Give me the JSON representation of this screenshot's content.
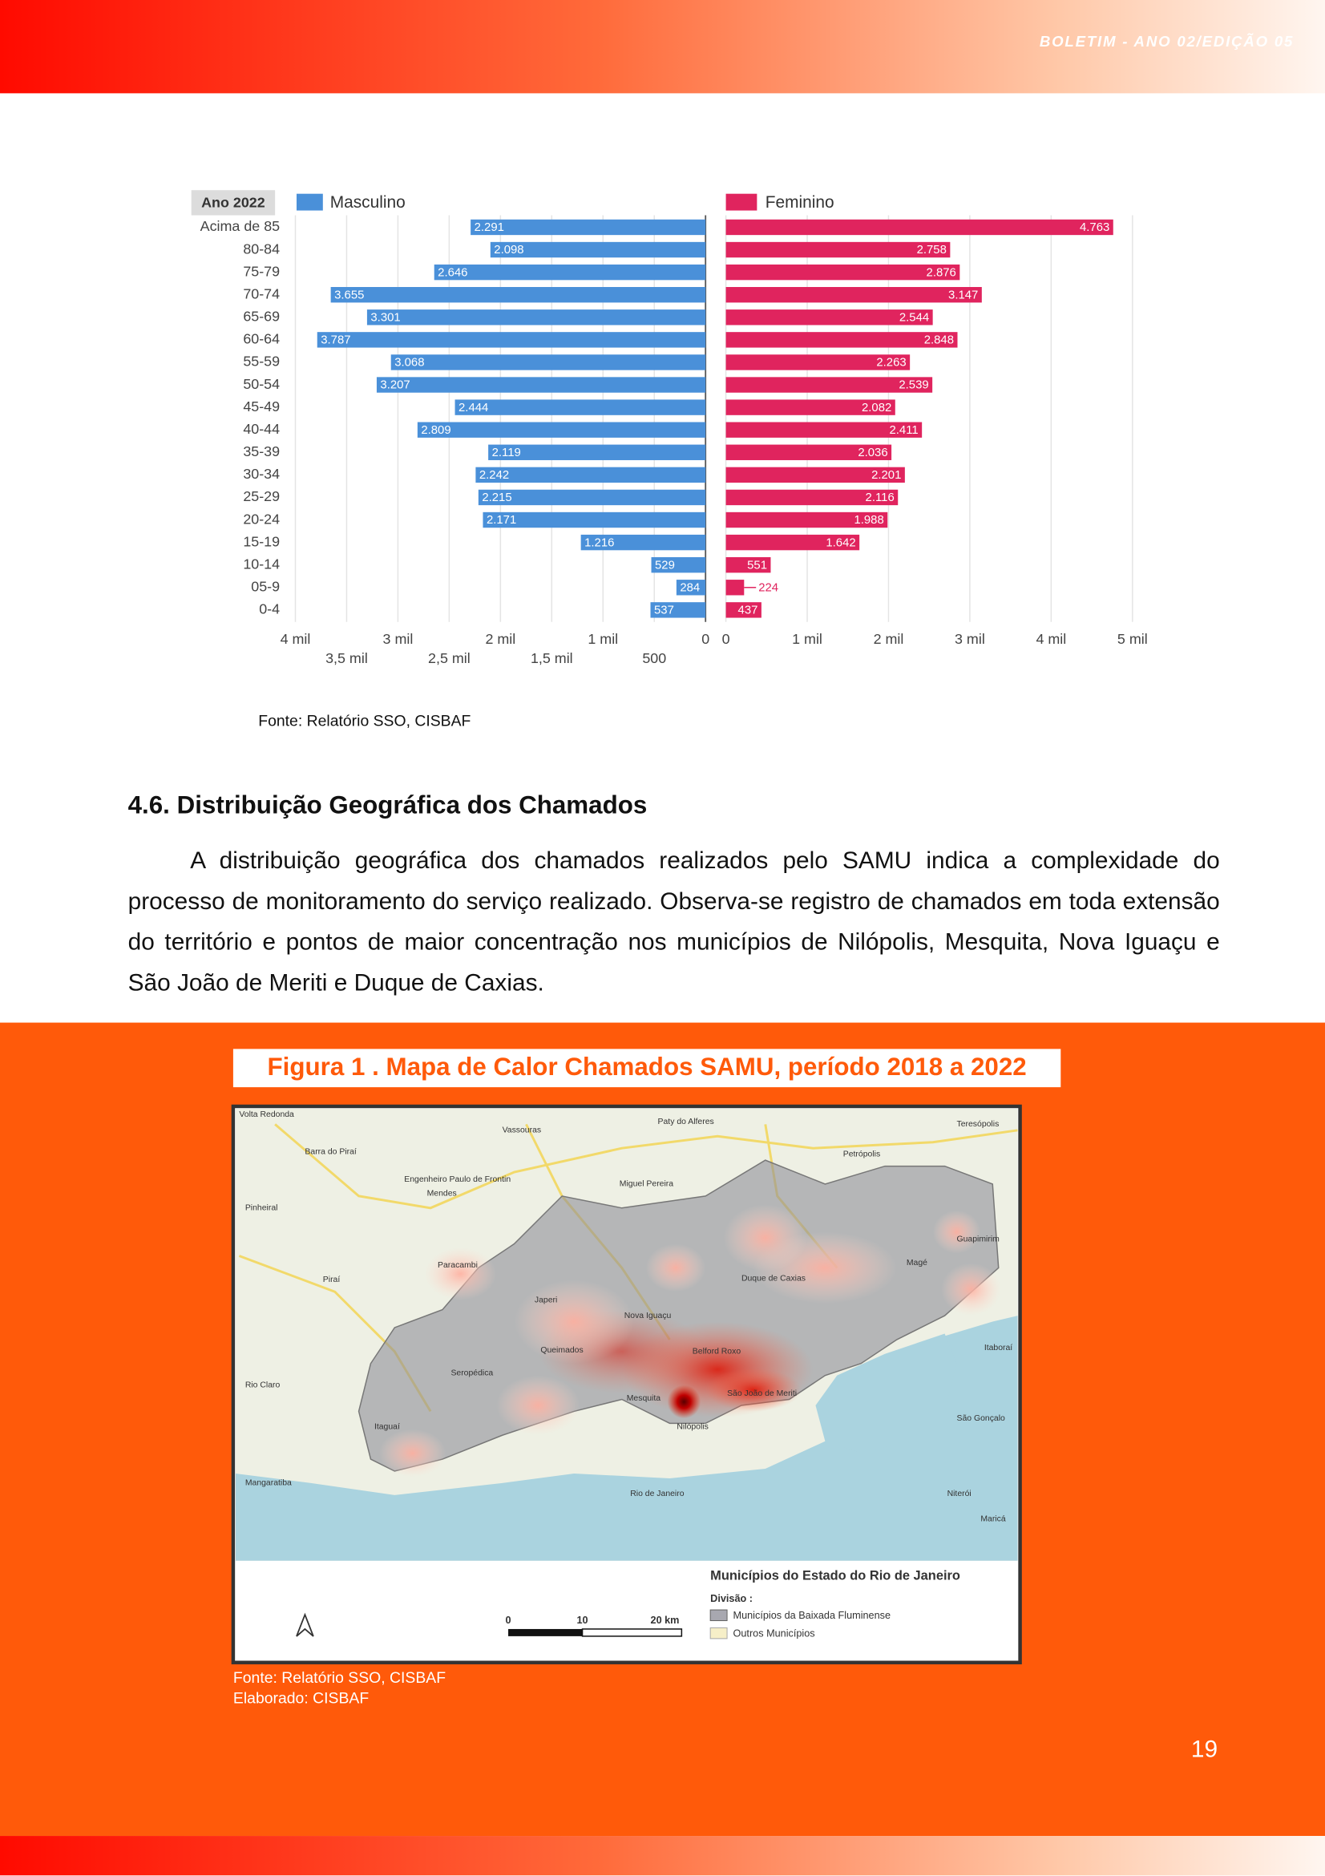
{
  "header": {
    "title": "BOLETIM - ANO 02/EDIÇÃO 05"
  },
  "chart_data": {
    "type": "bar",
    "legend_title": "Ano 2022",
    "categories": [
      "Acima de 85",
      "80-84",
      "75-79",
      "70-74",
      "65-69",
      "60-64",
      "55-59",
      "50-54",
      "45-49",
      "40-44",
      "35-39",
      "30-34",
      "25-29",
      "20-24",
      "15-19",
      "10-14",
      "05-9",
      "0-4"
    ],
    "series": [
      {
        "name": "Masculino",
        "color": "#4a90d9",
        "axis": "x",
        "values": [
          2291,
          2098,
          2646,
          3655,
          3301,
          3787,
          3068,
          3207,
          2444,
          2809,
          2119,
          2242,
          2215,
          2171,
          1216,
          529,
          284,
          537
        ],
        "value_labels": [
          "2.291",
          "2.098",
          "2.646",
          "3.655",
          "3.301",
          "3.787",
          "3.068",
          "3.207",
          "2.444",
          "2.809",
          "2.119",
          "2.242",
          "2.215",
          "2.171",
          "1.216",
          "529",
          "284",
          "537"
        ]
      },
      {
        "name": "Feminino",
        "color": "#e0245e",
        "axis": "x2",
        "values": [
          4763,
          2758,
          2876,
          3147,
          2544,
          2848,
          2263,
          2539,
          2082,
          2411,
          2036,
          2201,
          2116,
          1988,
          1642,
          551,
          224,
          437
        ],
        "value_labels": [
          "4.763",
          "2.758",
          "2.876",
          "3.147",
          "2.544",
          "2.848",
          "2.263",
          "2.539",
          "2.082",
          "2.411",
          "2.036",
          "2.201",
          "2.116",
          "1.988",
          "1.642",
          "551",
          "224",
          "437"
        ]
      }
    ],
    "xlim": [
      4000,
      0
    ],
    "xticks": [
      {
        "value": 4000,
        "label": "4 mil"
      },
      {
        "value": 3500,
        "label": "3,5 mil"
      },
      {
        "value": 3000,
        "label": "3 mil"
      },
      {
        "value": 2500,
        "label": "2,5 mil"
      },
      {
        "value": 2000,
        "label": "2 mil"
      },
      {
        "value": 1500,
        "label": "1,5 mil"
      },
      {
        "value": 1000,
        "label": "1 mil"
      },
      500,
      0
    ],
    "x2lim": [
      0,
      5000
    ],
    "x2ticks": [
      0,
      {
        "value": 1000,
        "label": "1 mil"
      },
      {
        "value": 2000,
        "label": "2 mil"
      },
      {
        "value": 3000,
        "label": "3 mil"
      },
      {
        "value": 4000,
        "label": "4 mil"
      },
      {
        "value": 5000,
        "label": "5 mil"
      }
    ],
    "grid": true
  },
  "chart_source": "Fonte: Relatório SSO, CISBAF",
  "section": {
    "heading": "4.6. Distribuição Geográfica dos Chamados",
    "paragraph": "A distribuição geográfica dos chamados realizados pelo SAMU indica a complexidade do processo de monitoramento do serviço realizado. Observa-se registro de chamados em toda extensão do território e pontos de maior concentração nos municípios de Nilópolis, Mesquita, Nova Iguaçu e São João de Meriti e Duque de Caxias."
  },
  "figure": {
    "title": "Figura 1 . Mapa de Calor Chamados SAMU, período 2018 a 2022",
    "map_labels": [
      "Volta Redonda",
      "Vassouras",
      "Paty do Alferes",
      "Teresópolis",
      "Barra do Piraí",
      "Petrópolis",
      "Engenheiro Paulo de Frontin",
      "Mendes",
      "Miguel Pereira",
      "Pinheiral",
      "Guapimirim",
      "Paracambi",
      "Magé",
      "Piraí",
      "Duque de Caxias",
      "Japeri",
      "Nova Iguaçu",
      "Itaboraí",
      "Queimados",
      "Belford Roxo",
      "Seropédica",
      "Rio Claro",
      "Mesquita",
      "São João de Meriti",
      "Nilópolis",
      "São Gonçalo",
      "Itaguaí",
      "Mangaratiba",
      "Rio de Janeiro",
      "Niterói",
      "Maricá"
    ],
    "legend": {
      "title": "Municípios do Estado do Rio de Janeiro",
      "division": "Divisão :",
      "items": [
        "Municípios da Baixada Fluminense",
        "Outros Municípios"
      ]
    },
    "scale": [
      "0",
      "10",
      "20 km"
    ],
    "source": [
      "Fonte: Relatório SSO, CISBAF",
      "Elaborado: CISBAF"
    ]
  },
  "page_number": "19"
}
